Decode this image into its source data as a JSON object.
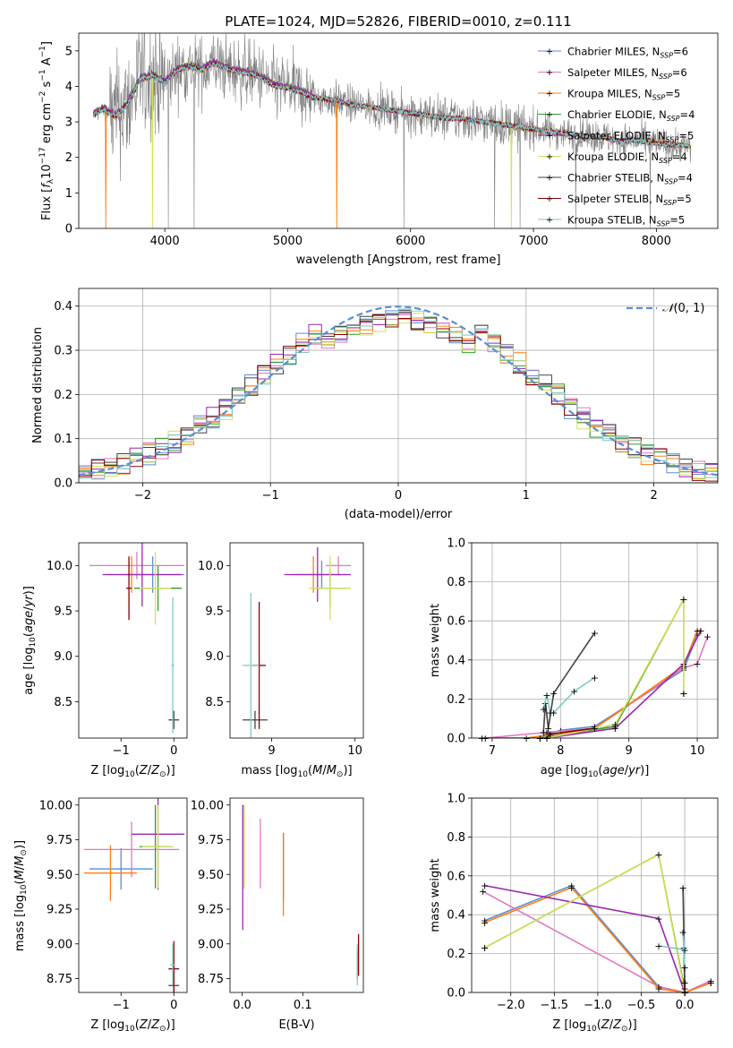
{
  "colors": {
    "Chabrier MILES": "#5b8ed6",
    "Salpeter MILES": "#e377c2",
    "Kroupa MILES": "#ff7f0e",
    "Chabrier ELODIE": "#2ca02c",
    "Salpeter ELODIE": "#9c27b0",
    "Kroupa ELODIE": "#d4e157",
    "Chabrier STELIB": "#444444",
    "Salpeter STELIB": "#8b0000",
    "Kroupa STELIB": "#80cbc4"
  },
  "chart_data": [
    {
      "id": "spectrum",
      "type": "line",
      "title": "PLATE=1024, MJD=52826, FIBERID=0010, z=0.111",
      "xlabel": "wavelength [Angstrom, rest frame]",
      "ylabel": "Flux [f_λ10^-17 erg cm^-2 s^-1 A^-1]",
      "xlim": [
        3300,
        8500
      ],
      "ylim": [
        0,
        5.5
      ],
      "xticks": [
        4000,
        5000,
        6000,
        7000,
        8000
      ],
      "yticks": [
        0,
        1,
        2,
        3,
        4,
        5
      ],
      "legend": {
        "placement": "upper-right",
        "entries": [
          {
            "label": "Chabrier MILES, N_SSP=6",
            "color": "#5b8ed6"
          },
          {
            "label": "Salpeter MILES, N_SSP=6",
            "color": "#e377c2"
          },
          {
            "label": "Kroupa MILES, N_SSP=5",
            "color": "#ff7f0e"
          },
          {
            "label": "Chabrier ELODIE, N_SSP=4",
            "color": "#2ca02c"
          },
          {
            "label": "Salpeter ELODIE, N_SSP=5",
            "color": "#9c27b0"
          },
          {
            "label": "Kroupa ELODIE, N_SSP=4",
            "color": "#d4e157"
          },
          {
            "label": "Chabrier STELIB, N_SSP=4",
            "color": "#444444"
          },
          {
            "label": "Salpeter STELIB, N_SSP=5",
            "color": "#8b0000"
          },
          {
            "label": "Kroupa STELIB, N_SSP=5",
            "color": "#80cbc4"
          }
        ]
      },
      "data_color": "#808080",
      "model_envelope": [
        [
          3420,
          3.2
        ],
        [
          3500,
          3.35
        ],
        [
          3600,
          3.15
        ],
        [
          3700,
          3.5
        ],
        [
          3800,
          4.2
        ],
        [
          3900,
          4.3
        ],
        [
          4000,
          4.1
        ],
        [
          4100,
          4.45
        ],
        [
          4200,
          4.55
        ],
        [
          4300,
          4.45
        ],
        [
          4400,
          4.65
        ],
        [
          4500,
          4.5
        ],
        [
          4600,
          4.4
        ],
        [
          4700,
          4.35
        ],
        [
          4800,
          4.2
        ],
        [
          4900,
          4.0
        ],
        [
          5000,
          3.95
        ],
        [
          5100,
          3.85
        ],
        [
          5200,
          3.7
        ],
        [
          5300,
          3.65
        ],
        [
          5400,
          3.6
        ],
        [
          5500,
          3.5
        ],
        [
          5600,
          3.45
        ],
        [
          5700,
          3.4
        ],
        [
          5800,
          3.35
        ],
        [
          5900,
          3.3
        ],
        [
          6000,
          3.25
        ],
        [
          6100,
          3.2
        ],
        [
          6200,
          3.15
        ],
        [
          6300,
          3.1
        ],
        [
          6400,
          3.1
        ],
        [
          6500,
          3.05
        ],
        [
          6600,
          3.0
        ],
        [
          6700,
          2.95
        ],
        [
          6800,
          2.9
        ],
        [
          6900,
          2.85
        ],
        [
          7000,
          2.8
        ],
        [
          7100,
          2.75
        ],
        [
          7200,
          2.7
        ],
        [
          7300,
          2.65
        ],
        [
          7400,
          2.6
        ],
        [
          7500,
          2.6
        ],
        [
          7600,
          2.55
        ],
        [
          7700,
          2.45
        ],
        [
          7800,
          2.5
        ],
        [
          7900,
          2.45
        ],
        [
          8000,
          2.4
        ],
        [
          8100,
          2.35
        ],
        [
          8200,
          2.35
        ],
        [
          8280,
          2.3
        ]
      ]
    },
    {
      "id": "residuals",
      "type": "line",
      "xlabel": "(data-model)/error",
      "ylabel": "Normed distribution",
      "xlim": [
        -2.5,
        2.5
      ],
      "ylim": [
        0,
        0.44
      ],
      "xticks": [
        -2,
        -1,
        0,
        1,
        2
      ],
      "yticks": [
        0.0,
        0.1,
        0.2,
        0.3,
        0.4
      ],
      "grid": true,
      "legend": {
        "placement": "upper-right",
        "entries": [
          {
            "label": "N(0,1)",
            "color": "#5b8ed6"
          }
        ]
      },
      "bin_width": 0.1,
      "histogram_median": [
        0.025,
        0.03,
        0.05,
        0.06,
        0.07,
        0.08,
        0.09,
        0.09,
        0.1,
        0.11,
        0.12,
        0.13,
        0.14,
        0.15,
        0.16,
        0.17,
        0.19,
        0.2,
        0.21,
        0.23,
        0.25,
        0.26,
        0.27,
        0.28,
        0.3,
        0.31,
        0.32,
        0.33,
        0.34,
        0.35,
        0.36,
        0.36,
        0.37,
        0.37,
        0.38,
        0.38,
        0.39,
        0.39,
        0.39,
        0.39,
        0.39,
        0.38,
        0.38,
        0.37,
        0.37,
        0.36,
        0.36,
        0.35,
        0.34,
        0.33,
        0.32,
        0.31,
        0.3,
        0.29,
        0.27,
        0.26,
        0.25,
        0.23,
        0.22,
        0.21,
        0.2,
        0.19,
        0.17,
        0.16,
        0.15,
        0.14,
        0.13,
        0.12,
        0.11,
        0.1,
        0.09,
        0.085,
        0.08,
        0.07,
        0.06,
        0.055,
        0.05,
        0.045,
        0.04,
        0.035,
        0.035,
        0.03,
        0.03,
        0.03,
        0.025,
        0.025,
        0.025,
        0.02,
        0.02,
        0.02,
        0.02,
        0.02,
        0.02,
        0.02,
        0.02,
        0.02,
        0.02,
        0.02,
        0.02,
        0.02
      ]
    },
    {
      "id": "age-vs-Z",
      "type": "scatter",
      "xlabel": "Z [log10(Z/Z⊙)]",
      "ylabel": "age [log10(age/yr)]",
      "xlim": [
        -1.8,
        0.25
      ],
      "ylim": [
        8.1,
        10.25
      ],
      "xticks": [
        -1,
        0
      ],
      "yticks": [
        8.5,
        9.0,
        9.5,
        10.0
      ],
      "points": [
        {
          "model": "Chabrier MILES",
          "x": -0.4,
          "y": 9.9,
          "xerr": 0.6,
          "yerr": 0.2
        },
        {
          "model": "Salpeter MILES",
          "x": -0.7,
          "y": 10.0,
          "xerr": 0.9,
          "yerr": 0.15
        },
        {
          "model": "Kroupa MILES",
          "x": -0.8,
          "y": 9.9,
          "xerr": 0.5,
          "yerr": 0.2
        },
        {
          "model": "Chabrier ELODIE",
          "x": -0.3,
          "y": 9.75,
          "xerr": 0.45,
          "yerr": 0.25
        },
        {
          "model": "Salpeter ELODIE",
          "x": -0.6,
          "y": 9.9,
          "xerr": 0.75,
          "yerr": 0.35
        },
        {
          "model": "Kroupa ELODIE",
          "x": -0.35,
          "y": 9.75,
          "xerr": 0.3,
          "yerr": 0.4
        },
        {
          "model": "Chabrier STELIB",
          "x": 0.0,
          "y": 8.3,
          "xerr": 0.1,
          "yerr": 0.1
        },
        {
          "model": "Salpeter STELIB",
          "x": -0.85,
          "y": 9.75,
          "xerr": 0.05,
          "yerr": 0.35
        },
        {
          "model": "Kroupa STELIB",
          "x": -0.02,
          "y": 8.9,
          "xerr": 0.03,
          "yerr": 0.75
        }
      ]
    },
    {
      "id": "age-vs-mass",
      "type": "scatter",
      "xlabel": "mass [log10(M/M⊙)]",
      "ylabel": "",
      "xlim": [
        8.5,
        10.1
      ],
      "ylim": [
        8.1,
        10.25
      ],
      "xticks": [
        9,
        10
      ],
      "yticks": [
        8.5,
        9.0,
        9.5,
        10.0
      ],
      "points": [
        {
          "model": "Chabrier MILES",
          "x": 9.6,
          "y": 9.9,
          "xerr": 0.3,
          "yerr": 0.15
        },
        {
          "model": "Salpeter MILES",
          "x": 9.8,
          "y": 10.0,
          "xerr": 0.15,
          "yerr": 0.1
        },
        {
          "model": "Kroupa MILES",
          "x": 9.5,
          "y": 9.9,
          "xerr": 0.25,
          "yerr": 0.2
        },
        {
          "model": "Chabrier ELODIE",
          "x": 9.7,
          "y": 9.75,
          "xerr": 0.2,
          "yerr": 0.2
        },
        {
          "model": "Salpeter ELODIE",
          "x": 9.55,
          "y": 9.9,
          "xerr": 0.4,
          "yerr": 0.3
        },
        {
          "model": "Kroupa ELODIE",
          "x": 9.7,
          "y": 9.75,
          "xerr": 0.25,
          "yerr": 0.35
        },
        {
          "model": "Chabrier STELIB",
          "x": 8.8,
          "y": 8.3,
          "xerr": 0.15,
          "yerr": 0.1
        },
        {
          "model": "Salpeter STELIB",
          "x": 8.85,
          "y": 8.9,
          "xerr": 0.08,
          "yerr": 0.7
        },
        {
          "model": "Kroupa STELIB",
          "x": 8.75,
          "y": 8.9,
          "xerr": 0.1,
          "yerr": 0.8
        }
      ]
    },
    {
      "id": "massweight-vs-age",
      "type": "line",
      "xlabel": "age [log10(age/yr)]",
      "ylabel": "mass weight",
      "xlim": [
        6.7,
        10.3
      ],
      "ylim": [
        0,
        1
      ],
      "xticks": [
        7,
        8,
        9,
        10
      ],
      "yticks": [
        0.0,
        0.2,
        0.4,
        0.6,
        0.8,
        1.0
      ],
      "grid": true,
      "series": [
        {
          "model": "Chabrier MILES",
          "x": [
            7.7,
            7.8,
            8.0,
            8.5,
            9.8,
            10.0
          ],
          "y": [
            0.0,
            0.02,
            0.04,
            0.06,
            0.35,
            0.53
          ]
        },
        {
          "model": "Salpeter MILES",
          "x": [
            6.9,
            7.8,
            8.5,
            9.8,
            10.0,
            10.15
          ],
          "y": [
            0.0,
            0.03,
            0.05,
            0.36,
            0.38,
            0.52
          ]
        },
        {
          "model": "Kroupa MILES",
          "x": [
            7.5,
            8.5,
            9.8,
            10.0,
            10.05
          ],
          "y": [
            0.0,
            0.05,
            0.37,
            0.55,
            0.55
          ]
        },
        {
          "model": "Chabrier ELODIE",
          "x": [
            7.7,
            8.8,
            9.8,
            9.8
          ],
          "y": [
            0.0,
            0.06,
            0.71,
            0.23
          ]
        },
        {
          "model": "Salpeter ELODIE",
          "x": [
            6.85,
            7.8,
            8.8,
            9.8,
            10.05
          ],
          "y": [
            0.0,
            0.0,
            0.05,
            0.38,
            0.55
          ]
        },
        {
          "model": "Kroupa ELODIE",
          "x": [
            7.8,
            8.8,
            9.8,
            9.8
          ],
          "y": [
            0.0,
            0.07,
            0.71,
            0.23
          ]
        },
        {
          "model": "Chabrier STELIB",
          "x": [
            7.75,
            7.78,
            7.82,
            7.9,
            8.5
          ],
          "y": [
            0.03,
            0.18,
            0.05,
            0.23,
            0.54
          ]
        },
        {
          "model": "Salpeter STELIB",
          "x": [
            7.8,
            7.85,
            8.5
          ],
          "y": [
            0.0,
            0.02,
            0.05
          ]
        },
        {
          "model": "Kroupa STELIB",
          "x": [
            7.75,
            7.8,
            7.85,
            7.9,
            8.2,
            8.5
          ],
          "y": [
            0.15,
            0.22,
            0.13,
            0.13,
            0.24,
            0.31
          ]
        }
      ]
    },
    {
      "id": "mass-vs-Z",
      "type": "scatter",
      "xlabel": "Z [log10(Z/Z⊙)]",
      "ylabel": "mass [log10(M/M⊙)]",
      "xlim": [
        -1.8,
        0.25
      ],
      "ylim": [
        8.65,
        10.05
      ],
      "xticks": [
        -1,
        0
      ],
      "yticks": [
        8.75,
        9.0,
        9.25,
        9.5,
        9.75,
        10.0
      ],
      "points": [
        {
          "model": "Chabrier MILES",
          "x": -1.0,
          "y": 9.54,
          "xerr": 0.6,
          "yerr": 0.15
        },
        {
          "model": "Salpeter MILES",
          "x": -0.8,
          "y": 9.68,
          "xerr": 0.9,
          "yerr": 0.2
        },
        {
          "model": "Kroupa MILES",
          "x": -1.2,
          "y": 9.51,
          "xerr": 0.5,
          "yerr": 0.2
        },
        {
          "model": "Chabrier ELODIE",
          "x": -0.35,
          "y": 9.7,
          "xerr": 0.3,
          "yerr": 0.3
        },
        {
          "model": "Salpeter ELODIE",
          "x": -0.3,
          "y": 9.79,
          "xerr": 0.5,
          "yerr": 0.4
        },
        {
          "model": "Kroupa ELODIE",
          "x": -0.3,
          "y": 9.7,
          "xerr": 0.3,
          "yerr": 0.3
        },
        {
          "model": "Chabrier STELIB",
          "x": 0.0,
          "y": 8.7,
          "xerr": 0.1,
          "yerr": 0.1
        },
        {
          "model": "Salpeter STELIB",
          "x": 0.0,
          "y": 8.82,
          "xerr": 0.1,
          "yerr": 0.2
        },
        {
          "model": "Kroupa STELIB",
          "x": -0.02,
          "y": 8.85,
          "xerr": 0.05,
          "yerr": 0.15
        }
      ]
    },
    {
      "id": "mass-vs-ebv",
      "type": "scatter",
      "xlabel": "E(B-V)",
      "ylabel": "",
      "xlim": [
        -0.02,
        0.2
      ],
      "ylim": [
        8.65,
        10.05
      ],
      "xticks": [
        0.0,
        0.1
      ],
      "yticks": [
        8.75,
        9.0,
        9.25,
        9.5,
        9.75,
        10.0
      ],
      "points": [
        {
          "model": "Chabrier MILES",
          "x": 0.068,
          "y": 9.55,
          "xerr": 0.0,
          "yerr": 0.25
        },
        {
          "model": "Salpeter MILES",
          "x": 0.03,
          "y": 9.65,
          "xerr": 0.0,
          "yerr": 0.25
        },
        {
          "model": "Kroupa MILES",
          "x": 0.068,
          "y": 9.5,
          "xerr": 0.0,
          "yerr": 0.3
        },
        {
          "model": "Chabrier ELODIE",
          "x": 0.003,
          "y": 9.7,
          "xerr": 0.0,
          "yerr": 0.3
        },
        {
          "model": "Salpeter ELODIE",
          "x": 0.001,
          "y": 9.55,
          "xerr": 0.0,
          "yerr": 0.45
        },
        {
          "model": "Kroupa ELODIE",
          "x": 0.003,
          "y": 9.7,
          "xerr": 0.0,
          "yerr": 0.3
        },
        {
          "model": "Chabrier STELIB",
          "x": 0.19,
          "y": 8.85,
          "xerr": 0.0,
          "yerr": 0.1
        },
        {
          "model": "Salpeter STELIB",
          "x": 0.192,
          "y": 8.92,
          "xerr": 0.0,
          "yerr": 0.15
        },
        {
          "model": "Kroupa STELIB",
          "x": 0.19,
          "y": 8.85,
          "xerr": 0.0,
          "yerr": 0.15
        }
      ]
    },
    {
      "id": "massweight-vs-Z",
      "type": "line",
      "xlabel": "Z [log10(Z/Z⊙)]",
      "ylabel": "mass weight",
      "xlim": [
        -2.45,
        0.38
      ],
      "ylim": [
        0,
        1
      ],
      "xticks": [
        -2.0,
        -1.5,
        -1.0,
        -0.5,
        0.0
      ],
      "yticks": [
        0.0,
        0.2,
        0.4,
        0.6,
        0.8,
        1.0
      ],
      "grid": true,
      "series": [
        {
          "model": "Chabrier MILES",
          "x": [
            -2.3,
            -1.3,
            -0.3,
            0.0,
            0.3
          ],
          "y": [
            0.37,
            0.55,
            0.03,
            0.0,
            0.05
          ]
        },
        {
          "model": "Salpeter MILES",
          "x": [
            -2.32,
            -0.3,
            0.0,
            0.3
          ],
          "y": [
            0.52,
            0.03,
            0.0,
            0.06
          ]
        },
        {
          "model": "Kroupa MILES",
          "x": [
            -2.3,
            -1.3,
            -0.3,
            0.0,
            0.3
          ],
          "y": [
            0.36,
            0.54,
            0.02,
            0.0,
            0.05
          ]
        },
        {
          "model": "Chabrier ELODIE",
          "x": [
            -2.3,
            -0.3,
            -0.02,
            0.0
          ],
          "y": [
            0.23,
            0.71,
            0.06,
            0.0
          ]
        },
        {
          "model": "Salpeter ELODIE",
          "x": [
            -2.3,
            -0.3,
            0.0
          ],
          "y": [
            0.55,
            0.38,
            0.0
          ]
        },
        {
          "model": "Kroupa ELODIE",
          "x": [
            -2.3,
            -0.3,
            0.0
          ],
          "y": [
            0.23,
            0.71,
            0.0
          ]
        },
        {
          "model": "Chabrier STELIB",
          "x": [
            -0.02,
            0.0,
            -0.01,
            0.0
          ],
          "y": [
            0.54,
            0.05,
            0.23,
            0.0
          ]
        },
        {
          "model": "Salpeter STELIB",
          "x": [
            0.0,
            0.0
          ],
          "y": [
            0.02,
            0.05
          ]
        },
        {
          "model": "Kroupa STELIB",
          "x": [
            -0.3,
            0.0,
            -0.02,
            0.0
          ],
          "y": [
            0.24,
            0.22,
            0.31,
            0.13
          ]
        }
      ]
    }
  ]
}
